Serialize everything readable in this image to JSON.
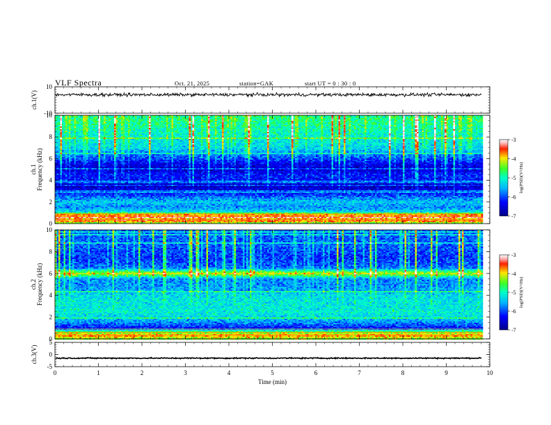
{
  "header": {
    "title": "VLF  Spectra",
    "date": "Oct. 21, 2025",
    "station": "station=GAK",
    "start": "start  UT  =    0  : 30 : 0"
  },
  "chart_data": [
    {
      "type": "line",
      "panel": "ch1-waveform",
      "ylabel": "ch.1(V)",
      "ylim": [
        -10,
        10
      ],
      "yticks": [
        "10",
        "-10"
      ],
      "x_range": [
        0,
        10
      ],
      "mean_level": 4,
      "noise_amplitude": 1.5,
      "data_end_min": 9.82,
      "color": "#000000"
    },
    {
      "type": "heatmap",
      "panel": "ch1-spectrogram",
      "ylabel_top": "ch.1",
      "ylabel": "Frequency  (kHz)",
      "ylim": [
        0,
        10
      ],
      "yticks": [
        "0",
        "2",
        "4",
        "6",
        "8",
        "10"
      ],
      "x_range": [
        0,
        10
      ],
      "data_end_min": 9.82,
      "colorbar": {
        "label": "log(PSD)(V²/Hz)",
        "range": [
          -7,
          -3
        ],
        "ticks": [
          "-3",
          "-4",
          "-5",
          "-6",
          "-7"
        ]
      },
      "bands": [
        [
          0,
          -4.6
        ],
        [
          0.25,
          -3.5
        ],
        [
          0.5,
          -3.9
        ],
        [
          0.8,
          -3.6
        ],
        [
          1.1,
          -5.3
        ],
        [
          1.5,
          -5.7
        ],
        [
          2.0,
          -5.4
        ],
        [
          2.5,
          -5.9
        ],
        [
          3.0,
          -6.4
        ],
        [
          3.5,
          -6.7
        ],
        [
          4.0,
          -6.3
        ],
        [
          4.5,
          -6.2
        ],
        [
          5.0,
          -6.6
        ],
        [
          5.5,
          -6.4
        ],
        [
          6.0,
          -6.0
        ],
        [
          6.5,
          -5.7
        ],
        [
          7.0,
          -5.3
        ],
        [
          7.5,
          -5.2
        ],
        [
          8.0,
          -5.1
        ],
        [
          8.5,
          -5.0
        ],
        [
          9.0,
          -4.9
        ],
        [
          9.5,
          -4.8
        ],
        [
          10.0,
          -4.8
        ]
      ]
    },
    {
      "type": "heatmap",
      "panel": "ch2-spectrogram",
      "ylabel_top": "ch.2",
      "ylabel": "Frequency  (kHz)",
      "ylim": [
        0,
        10
      ],
      "yticks": [
        "0",
        "2",
        "4",
        "6",
        "8",
        "10"
      ],
      "x_range": [
        0,
        10
      ],
      "data_end_min": 9.82,
      "colorbar": {
        "label": "log(PSD)(V²/Hz)",
        "range": [
          -7,
          -3
        ],
        "ticks": [
          "-3",
          "-4",
          "-5",
          "-6",
          "-7"
        ]
      },
      "bands": [
        [
          0,
          -4.3
        ],
        [
          0.3,
          -3.7
        ],
        [
          0.6,
          -4.4
        ],
        [
          1.0,
          -6.2
        ],
        [
          1.5,
          -5.7
        ],
        [
          2.0,
          -5.3
        ],
        [
          2.5,
          -5.1
        ],
        [
          3.0,
          -5.2
        ],
        [
          3.5,
          -5.2
        ],
        [
          4.0,
          -5.3
        ],
        [
          4.5,
          -5.6
        ],
        [
          5.0,
          -5.7
        ],
        [
          5.5,
          -5.7
        ],
        [
          6.0,
          -4.1
        ],
        [
          6.5,
          -5.8
        ],
        [
          7.0,
          -6.0
        ],
        [
          7.5,
          -6.1
        ],
        [
          8.0,
          -6.0
        ],
        [
          8.5,
          -5.9
        ],
        [
          9.0,
          -5.9
        ],
        [
          9.5,
          -5.9
        ],
        [
          10.0,
          -5.9
        ]
      ]
    },
    {
      "type": "line",
      "panel": "ch3-waveform",
      "ylabel": "ch.3(V)",
      "ylim": [
        -5,
        5
      ],
      "yticks": [
        "5",
        "0",
        "-5"
      ],
      "x_range": [
        0,
        10
      ],
      "mean_level": -1.5,
      "noise_amplitude": 0.3,
      "data_end_min": 9.82,
      "xlabel": "Time  (min)",
      "xticks": [
        "0",
        "1",
        "2",
        "3",
        "4",
        "5",
        "6",
        "7",
        "8",
        "9",
        "10"
      ],
      "color": "#000000"
    }
  ]
}
